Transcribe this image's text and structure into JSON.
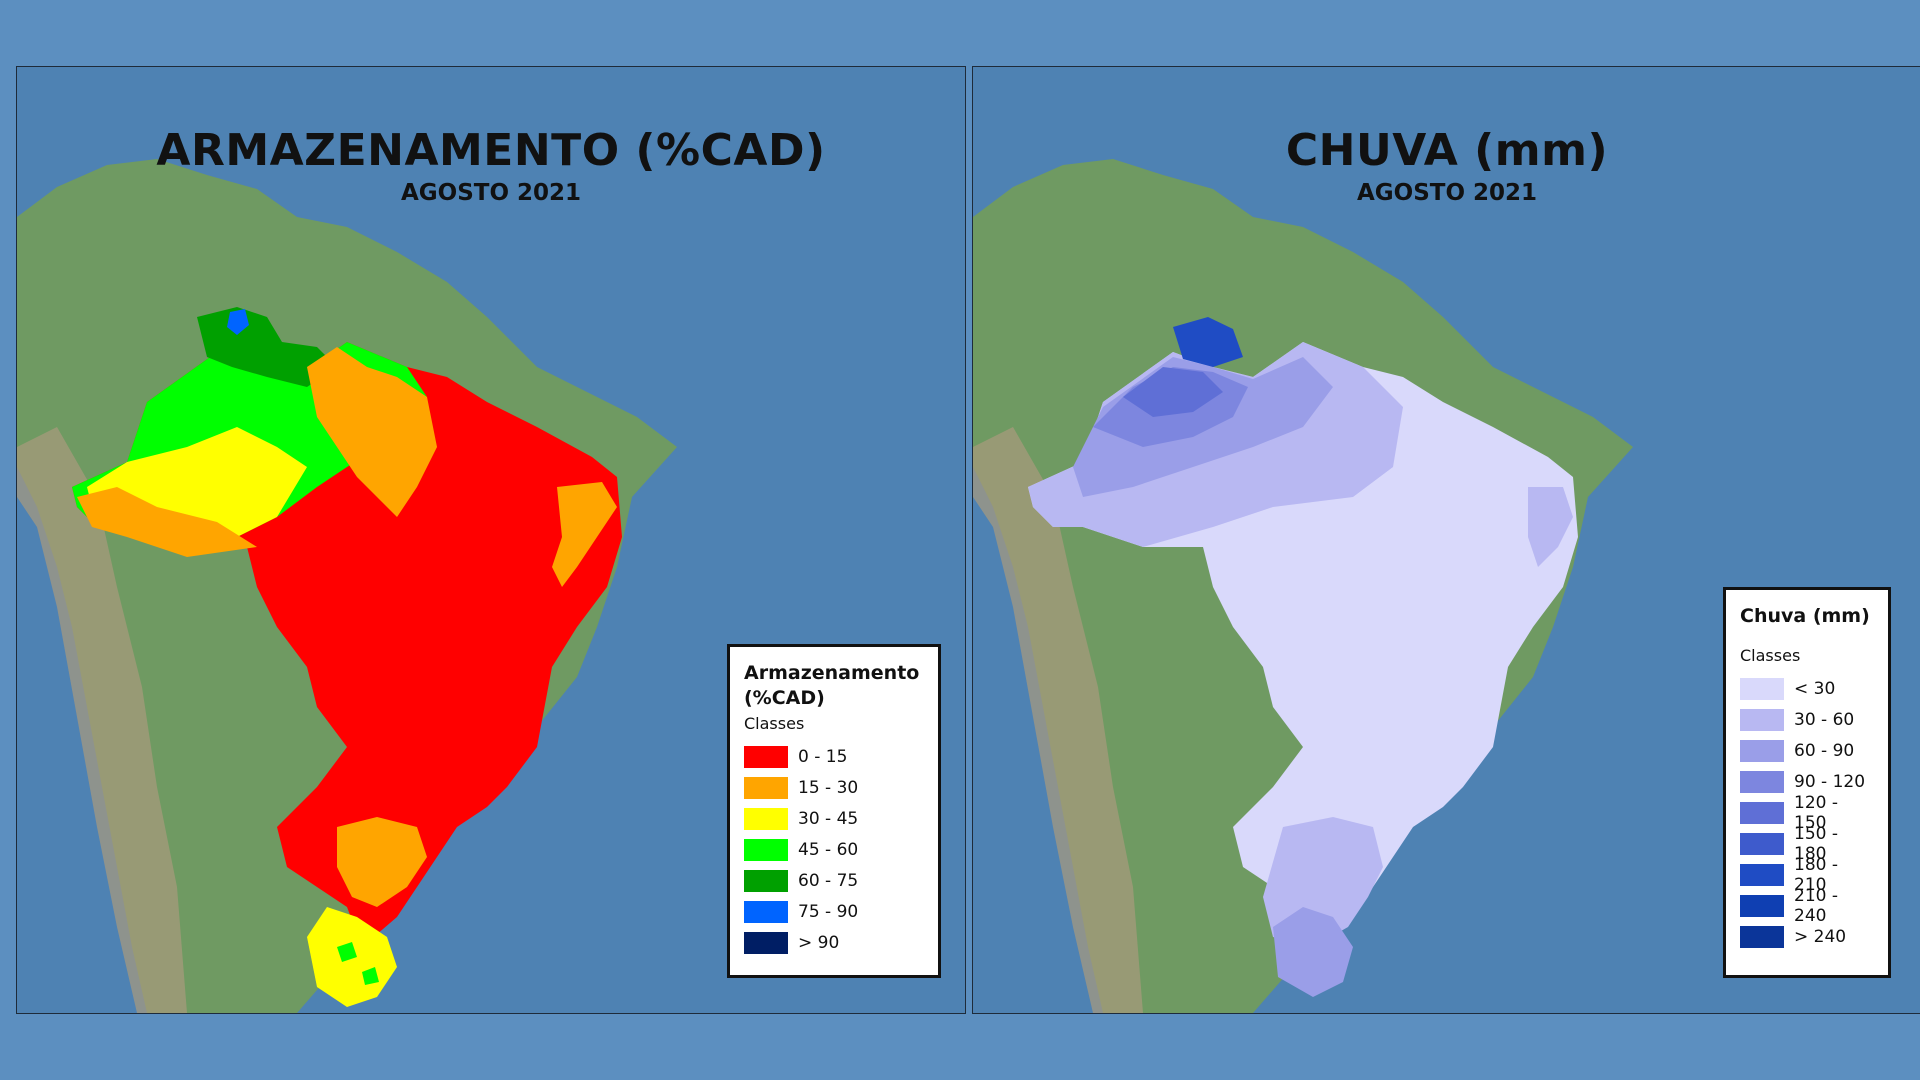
{
  "left_map": {
    "title": "ARMAZENAMENTO (%CAD)",
    "subtitle": "AGOSTO 2021",
    "legend": {
      "title_line1": "Armazenamento",
      "title_line2": "(%CAD)",
      "subtitle": "Classes",
      "items": [
        {
          "label": "0 - 15",
          "color": "#ff0000"
        },
        {
          "label": "15 - 30",
          "color": "#ffa500"
        },
        {
          "label": "30 - 45",
          "color": "#ffff00"
        },
        {
          "label": "45 - 60",
          "color": "#00ff00"
        },
        {
          "label": "60 - 75",
          "color": "#00a000"
        },
        {
          "label": "75 - 90",
          "color": "#0064ff"
        },
        {
          "label": "> 90",
          "color": "#001e64"
        }
      ]
    }
  },
  "right_map": {
    "title": "CHUVA (mm)",
    "subtitle": "AGOSTO 2021",
    "legend": {
      "title_line1": "Chuva (mm)",
      "subtitle": "Classes",
      "items": [
        {
          "label": "< 30",
          "color": "#d9d9fb"
        },
        {
          "label": "30 - 60",
          "color": "#b8b8f2"
        },
        {
          "label": "60 - 90",
          "color": "#9a9ee8"
        },
        {
          "label": "90 - 120",
          "color": "#7d86df"
        },
        {
          "label": "120 - 150",
          "color": "#5f6fd6"
        },
        {
          "label": "150 - 180",
          "color": "#3e5bcc"
        },
        {
          "label": "180 - 210",
          "color": "#1f4cc4"
        },
        {
          "label": "210 - 240",
          "color": "#0f3fb2"
        },
        {
          "label": "> 240",
          "color": "#0b3599"
        }
      ]
    }
  },
  "colors": {
    "background": "#5c8fc0",
    "ocean": "#4e82b3",
    "land": "#6f9a62"
  }
}
